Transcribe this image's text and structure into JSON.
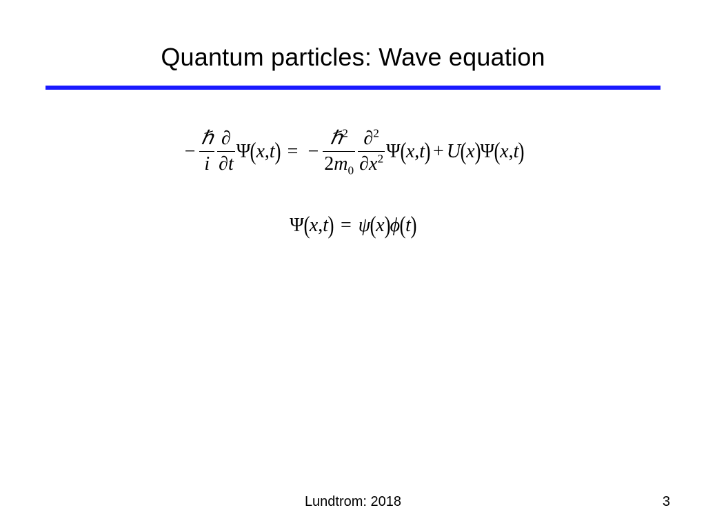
{
  "slide": {
    "title": "Quantum particles: Wave equation",
    "rule_color": "#1a1aff",
    "background_color": "#ffffff",
    "title_fontsize": 36,
    "eq_fontsize": 28,
    "footer_fontsize": 20
  },
  "equation1": {
    "lhs": {
      "sign": "−",
      "frac1": {
        "num": "ℏ",
        "den": "i"
      },
      "frac2": {
        "num": "∂",
        "den_prefix": "∂",
        "den_var": "t"
      },
      "psi": {
        "symbol": "Ψ",
        "args_x": "x",
        "comma": ",",
        "args_t": "t"
      }
    },
    "eq": "=",
    "rhs": {
      "term1": {
        "sign": "−",
        "frac1": {
          "num_sym": "ℏ",
          "num_sup": "2",
          "den_pre": "2",
          "den_m": "m",
          "den_sub": "0"
        },
        "frac2": {
          "num_sym": "∂",
          "num_sup": "2",
          "den_sym": "∂",
          "den_var": "x",
          "den_sup": "2"
        },
        "psi": {
          "symbol": "Ψ",
          "args_x": "x",
          "comma": ",",
          "args_t": "t"
        }
      },
      "plus": "+",
      "term2": {
        "U": "U",
        "U_arg": "x",
        "psi": {
          "symbol": "Ψ",
          "args_x": "x",
          "comma": ",",
          "args_t": "t"
        }
      }
    }
  },
  "equation2": {
    "lhs": {
      "symbol": "Ψ",
      "args_x": "x",
      "comma": ",",
      "args_t": "t"
    },
    "eq": "=",
    "rhs": {
      "psi_small": "ψ",
      "psi_arg": "x",
      "phi": "ϕ",
      "phi_arg": "t"
    }
  },
  "footer": {
    "center": "Lundtrom: 2018",
    "page": "3"
  }
}
